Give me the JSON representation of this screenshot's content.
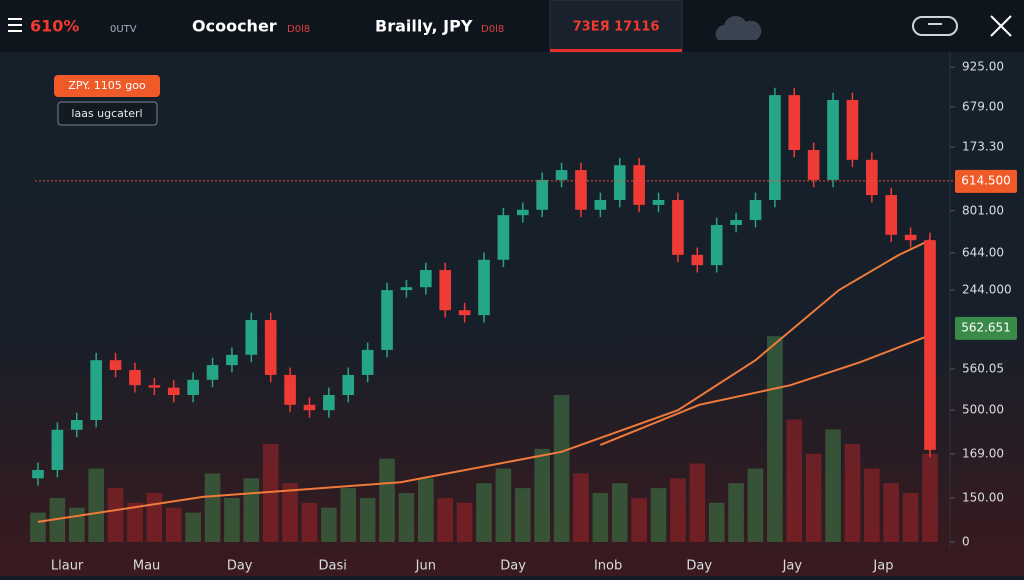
{
  "header": {
    "items": [
      {
        "text": "610%",
        "sub": "0UTV"
      },
      {
        "text": "Ocoocher",
        "sub": "D0l8"
      },
      {
        "text": "Brailly, JPY",
        "sub": "D0l8"
      }
    ],
    "tab": "73ЕЯ 17116"
  },
  "badges": [
    "ZPY. 1105 goo",
    "laas ugcaterl"
  ],
  "chart_data": {
    "type": "candlestick",
    "open": [
      130,
      147,
      229,
      249,
      371,
      351,
      320,
      315,
      300,
      331,
      361,
      382,
      453,
      341,
      280,
      269,
      300,
      341,
      392,
      514,
      520,
      555,
      473,
      463,
      576,
      667,
      678,
      739,
      759,
      678,
      698,
      769,
      688,
      698,
      586,
      565,
      647,
      657,
      698,
      912,
      800,
      739,
      902,
      780,
      708,
      627,
      616
    ],
    "high": [
      162,
      244,
      264,
      386,
      386,
      366,
      335,
      330,
      346,
      376,
      397,
      468,
      468,
      356,
      295,
      315,
      356,
      407,
      529,
      535,
      570,
      570,
      488,
      591,
      682,
      693,
      754,
      774,
      774,
      713,
      784,
      784,
      713,
      713,
      601,
      662,
      672,
      713,
      927,
      927,
      815,
      917,
      917,
      795,
      723,
      642,
      631
    ],
    "low": [
      115,
      132,
      214,
      234,
      336,
      305,
      300,
      285,
      285,
      316,
      346,
      367,
      326,
      265,
      254,
      254,
      285,
      326,
      377,
      499,
      505,
      458,
      448,
      448,
      561,
      652,
      663,
      724,
      663,
      663,
      683,
      673,
      673,
      571,
      550,
      550,
      632,
      642,
      683,
      785,
      724,
      724,
      765,
      693,
      612,
      601,
      173
    ],
    "close": [
      147,
      229,
      249,
      371,
      351,
      320,
      315,
      300,
      331,
      361,
      382,
      453,
      341,
      280,
      269,
      300,
      341,
      392,
      514,
      520,
      555,
      473,
      463,
      576,
      667,
      678,
      739,
      759,
      678,
      698,
      769,
      688,
      698,
      586,
      565,
      647,
      657,
      698,
      912,
      800,
      739,
      902,
      780,
      708,
      627,
      616,
      188
    ],
    "volume": [
      60,
      90,
      70,
      150,
      110,
      80,
      100,
      70,
      60,
      140,
      90,
      130,
      200,
      120,
      80,
      70,
      110,
      90,
      170,
      100,
      130,
      90,
      80,
      120,
      150,
      110,
      190,
      300,
      140,
      100,
      120,
      90,
      110,
      130,
      160,
      80,
      120,
      150,
      420,
      250,
      180,
      230,
      200,
      150,
      120,
      100,
      180
    ],
    "up_color": "#26a689",
    "down_color": "#ef3b36",
    "moving_averages": [
      {
        "color": "#f07a3a",
        "x": [
          0,
          8.5,
          18.7,
          27,
          33,
          37,
          41.3,
          44.4,
          46
        ],
        "values": [
          41,
          92,
          122,
          184,
          269,
          371,
          514,
          586,
          616
        ]
      },
      {
        "color": "#f07a3a",
        "x": [
          29,
          34.1,
          38.8,
          42.4,
          46
        ],
        "values": [
          198,
          280,
          320,
          367,
          422
        ]
      }
    ],
    "ylim": [
      0,
      1000
    ],
    "yticks": [
      0,
      {
        "value": 90,
        "label": "150.00"
      },
      {
        "value": 180,
        "label": "169.00"
      },
      {
        "value": 269,
        "label": "500.00"
      },
      {
        "value": 353,
        "label": "560.05"
      },
      {
        "value": 514,
        "label": "244.000"
      },
      {
        "value": 590,
        "label": "644.00"
      },
      {
        "value": 676,
        "label": "801.00"
      },
      {
        "value": 806,
        "label": "173.30"
      },
      {
        "value": 888,
        "label": "679.00"
      },
      {
        "value": 969,
        "label": "925.00"
      }
    ],
    "xlim": [
      -1,
      47
    ],
    "xticks": [
      {
        "value": 1.5,
        "label": "Llaur"
      },
      {
        "value": 5.6,
        "label": "Mau"
      },
      {
        "value": 10.4,
        "label": "Day"
      },
      {
        "value": 15.2,
        "label": "Dasi"
      },
      {
        "value": 20,
        "label": "Jun"
      },
      {
        "value": 24.5,
        "label": "Day"
      },
      {
        "value": 29.4,
        "label": "Inob"
      },
      {
        "value": 34.1,
        "label": "Day"
      },
      {
        "value": 38.9,
        "label": "Jay"
      },
      {
        "value": 43.6,
        "label": "Jap"
      }
    ],
    "price_markers": [
      {
        "value": 737,
        "label": "614.500",
        "color": "#f05a28"
      },
      {
        "value": 437,
        "label": "562.651",
        "color": "#3a8a4a"
      }
    ]
  }
}
